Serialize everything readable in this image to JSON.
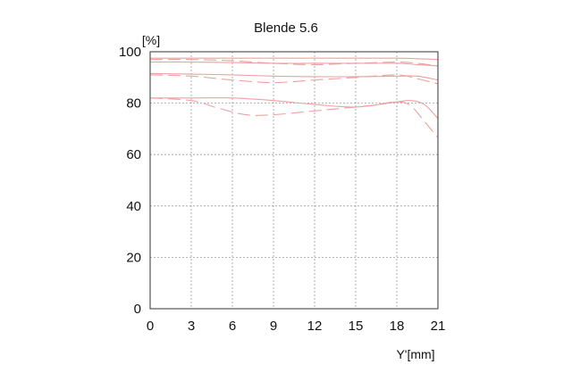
{
  "chart_data": {
    "type": "line",
    "title": "Blende 5.6",
    "xlabel": "Y'[mm]",
    "ylabel": "[%]",
    "xlim": [
      0,
      21
    ],
    "ylim": [
      0,
      100
    ],
    "x_ticks": [
      0,
      3,
      6,
      9,
      12,
      15,
      18,
      21
    ],
    "y_ticks": [
      0,
      20,
      40,
      60,
      80,
      100
    ],
    "grid": true,
    "line_color": "#f0a0a0",
    "series": [
      {
        "style": "solid",
        "x": [
          0,
          3,
          6,
          9,
          12,
          15,
          18,
          19.5,
          21
        ],
        "y": [
          97.5,
          97.5,
          97.5,
          97.5,
          97.5,
          97.5,
          97.5,
          97.3,
          97.0
        ]
      },
      {
        "style": "dashed",
        "x": [
          0,
          3,
          6,
          9,
          12,
          15,
          18,
          19.5,
          21
        ],
        "y": [
          97.0,
          97.0,
          96.5,
          95.5,
          95.0,
          95.5,
          96.0,
          95.5,
          94.5
        ]
      },
      {
        "style": "solid",
        "x": [
          0,
          3,
          6,
          9,
          12,
          15,
          18,
          19.5,
          21
        ],
        "y": [
          96.0,
          96.0,
          95.8,
          95.5,
          95.5,
          95.5,
          95.5,
          95.0,
          94.5
        ]
      },
      {
        "style": "solid",
        "x": [
          0,
          3,
          6,
          9,
          12,
          15,
          18,
          19.5,
          21
        ],
        "y": [
          91.5,
          91.3,
          91.0,
          90.5,
          90.3,
          90.3,
          90.5,
          90.5,
          89.0
        ]
      },
      {
        "style": "dashed",
        "x": [
          0,
          3,
          6,
          9,
          12,
          15,
          18,
          19.5,
          21
        ],
        "y": [
          91.0,
          90.5,
          89.0,
          88.0,
          89.0,
          90.0,
          91.0,
          89.5,
          87.5
        ]
      },
      {
        "style": "solid",
        "x": [
          0,
          3,
          6,
          9,
          12,
          15,
          18,
          19,
          20,
          21
        ],
        "y": [
          82.0,
          82.0,
          82.0,
          81.0,
          79.5,
          78.5,
          80.5,
          81.0,
          79.5,
          74.0
        ]
      },
      {
        "style": "dashed",
        "x": [
          0,
          3,
          5,
          7,
          9,
          12,
          14,
          16,
          18,
          19,
          20,
          21
        ],
        "y": [
          82.0,
          81.0,
          78.0,
          75.5,
          75.5,
          77.0,
          78.0,
          79.0,
          80.5,
          79.0,
          73.0,
          66.5
        ]
      }
    ]
  }
}
